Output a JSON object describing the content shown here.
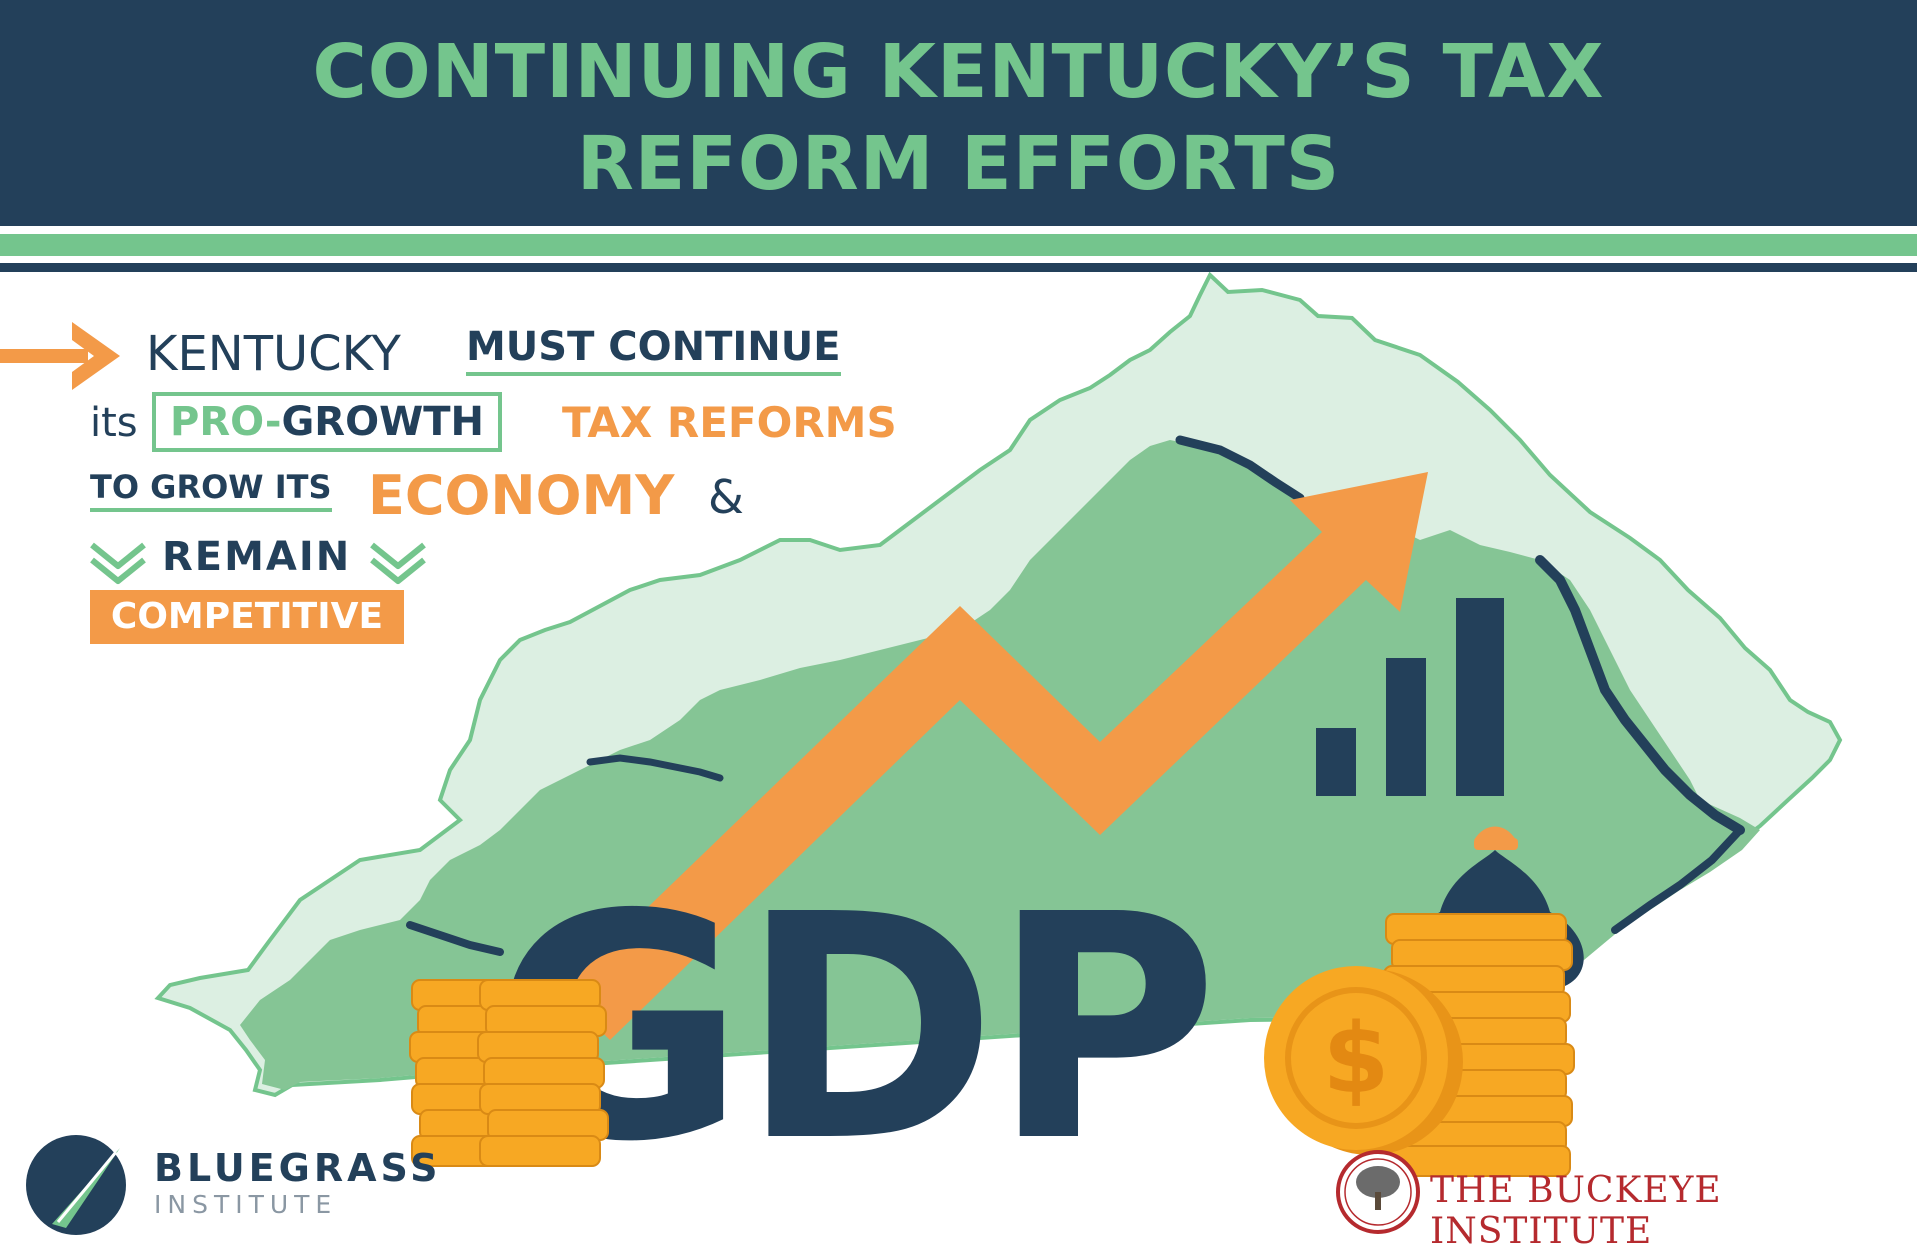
{
  "title": {
    "line1": "CONTINUING KENTUCKY’S TAX",
    "line2": "REFORM EFFORTS"
  },
  "message": {
    "kentucky": "KENTUCKY",
    "must_continue": "MUST CONTINUE",
    "its": "its",
    "pro": "PRO-",
    "growth": "GROWTH",
    "tax_reforms": "TAX REFORMS",
    "to_grow_its": "TO GROW ITS",
    "economy": "ECONOMY",
    "ampersand": "&",
    "remain": "REMAIN",
    "competitive": "COMPETITIVE"
  },
  "graphic": {
    "gdp": "GDP",
    "icons": [
      "arrow-right-icon",
      "chevron-down-icon",
      "kentucky-map-icon",
      "trend-arrow-icon",
      "bar-chart-icon",
      "coin-stack-icon",
      "money-bag-icon",
      "dollar-coin-icon"
    ],
    "colors": {
      "navy": "#23405a",
      "green": "#74c58d",
      "light_green": "#dcefe2",
      "orange": "#f39a48",
      "gold": "#f7a823"
    }
  },
  "logos": {
    "left_name": "BLUEGRASS",
    "left_sub": "INSTITUTE",
    "right_name": "THE BUCKEYE INSTITUTE"
  }
}
